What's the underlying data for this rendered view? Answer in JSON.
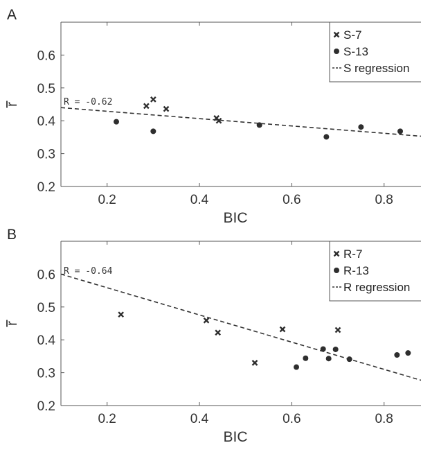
{
  "chart_data": [
    {
      "type": "scatter",
      "panel_label": "A",
      "xlabel": "BIC",
      "ylabel": "r",
      "xlim": [
        0.1,
        0.88
      ],
      "ylim": [
        0.2,
        0.7
      ],
      "xticks": [
        0.2,
        0.4,
        0.6,
        0.8
      ],
      "yticks": [
        0.2,
        0.3,
        0.4,
        0.5,
        0.6
      ],
      "legend_position": "top-right",
      "annotation": "R = -0.62",
      "series": [
        {
          "name": "S-7",
          "marker": "x",
          "points": [
            [
              0.285,
              0.445
            ],
            [
              0.3,
              0.465
            ],
            [
              0.328,
              0.436
            ],
            [
              0.437,
              0.408
            ],
            [
              0.442,
              0.4
            ]
          ]
        },
        {
          "name": "S-13",
          "marker": "circle",
          "points": [
            [
              0.22,
              0.397
            ],
            [
              0.3,
              0.368
            ],
            [
              0.53,
              0.387
            ],
            [
              0.675,
              0.351
            ],
            [
              0.75,
              0.381
            ],
            [
              0.835,
              0.368
            ]
          ]
        },
        {
          "name": "S regression",
          "marker": "dashed-line",
          "line": [
            [
              0.1,
              0.44
            ],
            [
              0.88,
              0.353
            ]
          ]
        }
      ]
    },
    {
      "type": "scatter",
      "panel_label": "B",
      "xlabel": "BIC",
      "ylabel": "r",
      "xlim": [
        0.1,
        0.88
      ],
      "ylim": [
        0.2,
        0.7
      ],
      "xticks": [
        0.2,
        0.4,
        0.6,
        0.8
      ],
      "yticks": [
        0.2,
        0.3,
        0.4,
        0.5,
        0.6
      ],
      "legend_position": "top-right",
      "annotation": "R = -0.64",
      "series": [
        {
          "name": "R-7",
          "marker": "x",
          "points": [
            [
              0.23,
              0.477
            ],
            [
              0.415,
              0.459
            ],
            [
              0.44,
              0.422
            ],
            [
              0.52,
              0.33
            ],
            [
              0.58,
              0.432
            ],
            [
              0.7,
              0.43
            ]
          ]
        },
        {
          "name": "R-13",
          "marker": "circle",
          "points": [
            [
              0.61,
              0.317
            ],
            [
              0.63,
              0.344
            ],
            [
              0.668,
              0.372
            ],
            [
              0.68,
              0.343
            ],
            [
              0.695,
              0.371
            ],
            [
              0.725,
              0.341
            ],
            [
              0.828,
              0.354
            ],
            [
              0.852,
              0.36
            ]
          ]
        },
        {
          "name": "R regression",
          "marker": "dashed-line",
          "line": [
            [
              0.1,
              0.6
            ],
            [
              0.88,
              0.277
            ]
          ]
        }
      ]
    }
  ]
}
